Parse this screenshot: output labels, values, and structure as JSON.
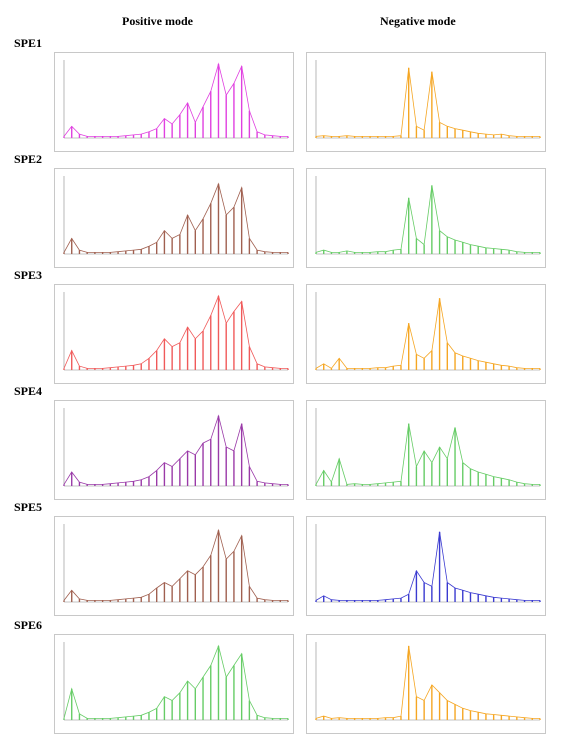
{
  "headers": {
    "positive": "Positive mode",
    "negative": "Negative mode"
  },
  "rows": [
    {
      "label": "SPE1",
      "pos_color": "#e040e0",
      "neg_color": "#f5a623"
    },
    {
      "label": "SPE2",
      "pos_color": "#a06050",
      "neg_color": "#66cc66"
    },
    {
      "label": "SPE3",
      "pos_color": "#f05a5a",
      "neg_color": "#f5a623"
    },
    {
      "label": "SPE4",
      "pos_color": "#9a3aa8",
      "neg_color": "#66cc66"
    },
    {
      "label": "SPE5",
      "pos_color": "#a06050",
      "neg_color": "#3a3ad0"
    },
    {
      "label": "SPE6",
      "pos_color": "#66cc66",
      "neg_color": "#f5a623"
    }
  ],
  "chart_data": [
    {
      "type": "line",
      "title": "SPE1 Positive mode",
      "x": [
        1,
        2,
        3,
        4,
        5,
        6,
        7,
        8,
        9,
        10,
        11,
        12,
        13,
        14,
        15,
        16,
        17,
        18,
        19,
        20,
        21,
        22,
        23,
        24,
        25,
        26,
        27,
        28,
        29,
        30
      ],
      "y": [
        0.02,
        0.15,
        0.05,
        0.02,
        0.02,
        0.02,
        0.02,
        0.02,
        0.03,
        0.04,
        0.05,
        0.08,
        0.12,
        0.25,
        0.18,
        0.3,
        0.45,
        0.2,
        0.4,
        0.6,
        0.95,
        0.55,
        0.7,
        0.92,
        0.35,
        0.08,
        0.04,
        0.03,
        0.02,
        0.02
      ]
    },
    {
      "type": "line",
      "title": "SPE1 Negative mode",
      "x": [
        1,
        2,
        3,
        4,
        5,
        6,
        7,
        8,
        9,
        10,
        11,
        12,
        13,
        14,
        15,
        16,
        17,
        18,
        19,
        20,
        21,
        22,
        23,
        24,
        25,
        26,
        27,
        28,
        29,
        30
      ],
      "y": [
        0.02,
        0.03,
        0.02,
        0.02,
        0.03,
        0.02,
        0.02,
        0.02,
        0.02,
        0.02,
        0.02,
        0.03,
        0.9,
        0.15,
        0.1,
        0.85,
        0.2,
        0.15,
        0.12,
        0.1,
        0.08,
        0.06,
        0.05,
        0.04,
        0.05,
        0.03,
        0.02,
        0.02,
        0.02,
        0.02
      ]
    },
    {
      "type": "line",
      "title": "SPE2 Positive mode",
      "x": [
        1,
        2,
        3,
        4,
        5,
        6,
        7,
        8,
        9,
        10,
        11,
        12,
        13,
        14,
        15,
        16,
        17,
        18,
        19,
        20,
        21,
        22,
        23,
        24,
        25,
        26,
        27,
        28,
        29,
        30
      ],
      "y": [
        0.02,
        0.2,
        0.05,
        0.02,
        0.02,
        0.02,
        0.02,
        0.03,
        0.04,
        0.05,
        0.06,
        0.1,
        0.15,
        0.3,
        0.2,
        0.25,
        0.5,
        0.3,
        0.45,
        0.65,
        0.9,
        0.5,
        0.6,
        0.85,
        0.2,
        0.05,
        0.03,
        0.02,
        0.02,
        0.02
      ]
    },
    {
      "type": "line",
      "title": "SPE2 Negative mode",
      "x": [
        1,
        2,
        3,
        4,
        5,
        6,
        7,
        8,
        9,
        10,
        11,
        12,
        13,
        14,
        15,
        16,
        17,
        18,
        19,
        20,
        21,
        22,
        23,
        24,
        25,
        26,
        27,
        28,
        29,
        30
      ],
      "y": [
        0.02,
        0.05,
        0.02,
        0.02,
        0.04,
        0.02,
        0.02,
        0.02,
        0.03,
        0.03,
        0.05,
        0.06,
        0.72,
        0.2,
        0.12,
        0.88,
        0.3,
        0.22,
        0.18,
        0.15,
        0.12,
        0.1,
        0.08,
        0.07,
        0.06,
        0.05,
        0.03,
        0.02,
        0.02,
        0.02
      ]
    },
    {
      "type": "line",
      "title": "SPE3 Positive mode",
      "x": [
        1,
        2,
        3,
        4,
        5,
        6,
        7,
        8,
        9,
        10,
        11,
        12,
        13,
        14,
        15,
        16,
        17,
        18,
        19,
        20,
        21,
        22,
        23,
        24,
        25,
        26,
        27,
        28,
        29,
        30
      ],
      "y": [
        0.02,
        0.25,
        0.05,
        0.02,
        0.02,
        0.02,
        0.03,
        0.04,
        0.05,
        0.06,
        0.08,
        0.15,
        0.25,
        0.4,
        0.3,
        0.35,
        0.55,
        0.4,
        0.5,
        0.7,
        0.95,
        0.6,
        0.75,
        0.88,
        0.3,
        0.08,
        0.04,
        0.03,
        0.02,
        0.02
      ]
    },
    {
      "type": "line",
      "title": "SPE3 Negative mode",
      "x": [
        1,
        2,
        3,
        4,
        5,
        6,
        7,
        8,
        9,
        10,
        11,
        12,
        13,
        14,
        15,
        16,
        17,
        18,
        19,
        20,
        21,
        22,
        23,
        24,
        25,
        26,
        27,
        28,
        29,
        30
      ],
      "y": [
        0.02,
        0.08,
        0.02,
        0.15,
        0.02,
        0.02,
        0.02,
        0.02,
        0.03,
        0.03,
        0.05,
        0.06,
        0.6,
        0.2,
        0.15,
        0.25,
        0.92,
        0.35,
        0.22,
        0.18,
        0.15,
        0.12,
        0.1,
        0.08,
        0.06,
        0.05,
        0.03,
        0.02,
        0.02,
        0.02
      ]
    },
    {
      "type": "line",
      "title": "SPE4 Positive mode",
      "x": [
        1,
        2,
        3,
        4,
        5,
        6,
        7,
        8,
        9,
        10,
        11,
        12,
        13,
        14,
        15,
        16,
        17,
        18,
        19,
        20,
        21,
        22,
        23,
        24,
        25,
        26,
        27,
        28,
        29,
        30
      ],
      "y": [
        0.02,
        0.18,
        0.05,
        0.02,
        0.02,
        0.02,
        0.03,
        0.04,
        0.05,
        0.06,
        0.08,
        0.12,
        0.2,
        0.3,
        0.25,
        0.35,
        0.45,
        0.4,
        0.55,
        0.6,
        0.9,
        0.5,
        0.45,
        0.8,
        0.25,
        0.06,
        0.04,
        0.03,
        0.02,
        0.02
      ]
    },
    {
      "type": "line",
      "title": "SPE4 Negative mode",
      "x": [
        1,
        2,
        3,
        4,
        5,
        6,
        7,
        8,
        9,
        10,
        11,
        12,
        13,
        14,
        15,
        16,
        17,
        18,
        19,
        20,
        21,
        22,
        23,
        24,
        25,
        26,
        27,
        28,
        29,
        30
      ],
      "y": [
        0.02,
        0.2,
        0.05,
        0.35,
        0.02,
        0.03,
        0.02,
        0.02,
        0.03,
        0.04,
        0.05,
        0.06,
        0.8,
        0.25,
        0.45,
        0.3,
        0.5,
        0.35,
        0.75,
        0.3,
        0.22,
        0.18,
        0.15,
        0.12,
        0.1,
        0.08,
        0.05,
        0.03,
        0.02,
        0.02
      ]
    },
    {
      "type": "line",
      "title": "SPE5 Positive mode",
      "x": [
        1,
        2,
        3,
        4,
        5,
        6,
        7,
        8,
        9,
        10,
        11,
        12,
        13,
        14,
        15,
        16,
        17,
        18,
        19,
        20,
        21,
        22,
        23,
        24,
        25,
        26,
        27,
        28,
        29,
        30
      ],
      "y": [
        0.02,
        0.15,
        0.04,
        0.02,
        0.02,
        0.02,
        0.02,
        0.03,
        0.04,
        0.05,
        0.06,
        0.1,
        0.18,
        0.25,
        0.2,
        0.3,
        0.4,
        0.35,
        0.45,
        0.6,
        0.92,
        0.55,
        0.65,
        0.85,
        0.2,
        0.05,
        0.03,
        0.02,
        0.02,
        0.02
      ]
    },
    {
      "type": "line",
      "title": "SPE5 Negative mode",
      "x": [
        1,
        2,
        3,
        4,
        5,
        6,
        7,
        8,
        9,
        10,
        11,
        12,
        13,
        14,
        15,
        16,
        17,
        18,
        19,
        20,
        21,
        22,
        23,
        24,
        25,
        26,
        27,
        28,
        29,
        30
      ],
      "y": [
        0.02,
        0.08,
        0.03,
        0.02,
        0.02,
        0.02,
        0.02,
        0.02,
        0.02,
        0.03,
        0.04,
        0.05,
        0.1,
        0.4,
        0.25,
        0.2,
        0.9,
        0.25,
        0.18,
        0.15,
        0.12,
        0.1,
        0.08,
        0.06,
        0.05,
        0.04,
        0.03,
        0.02,
        0.02,
        0.02
      ]
    },
    {
      "type": "line",
      "title": "SPE6 Positive mode",
      "x": [
        1,
        2,
        3,
        4,
        5,
        6,
        7,
        8,
        9,
        10,
        11,
        12,
        13,
        14,
        15,
        16,
        17,
        18,
        19,
        20,
        21,
        22,
        23,
        24,
        25,
        26,
        27,
        28,
        29,
        30
      ],
      "y": [
        0.02,
        0.4,
        0.08,
        0.02,
        0.02,
        0.02,
        0.02,
        0.03,
        0.04,
        0.05,
        0.06,
        0.1,
        0.15,
        0.3,
        0.25,
        0.35,
        0.5,
        0.4,
        0.55,
        0.7,
        0.95,
        0.55,
        0.7,
        0.85,
        0.25,
        0.06,
        0.03,
        0.02,
        0.02,
        0.02
      ]
    },
    {
      "type": "line",
      "title": "SPE6 Negative mode",
      "x": [
        1,
        2,
        3,
        4,
        5,
        6,
        7,
        8,
        9,
        10,
        11,
        12,
        13,
        14,
        15,
        16,
        17,
        18,
        19,
        20,
        21,
        22,
        23,
        24,
        25,
        26,
        27,
        28,
        29,
        30
      ],
      "y": [
        0.02,
        0.05,
        0.02,
        0.03,
        0.02,
        0.02,
        0.02,
        0.02,
        0.02,
        0.03,
        0.03,
        0.05,
        0.95,
        0.3,
        0.25,
        0.45,
        0.35,
        0.25,
        0.2,
        0.15,
        0.12,
        0.1,
        0.08,
        0.07,
        0.06,
        0.05,
        0.04,
        0.03,
        0.02,
        0.02
      ]
    }
  ]
}
